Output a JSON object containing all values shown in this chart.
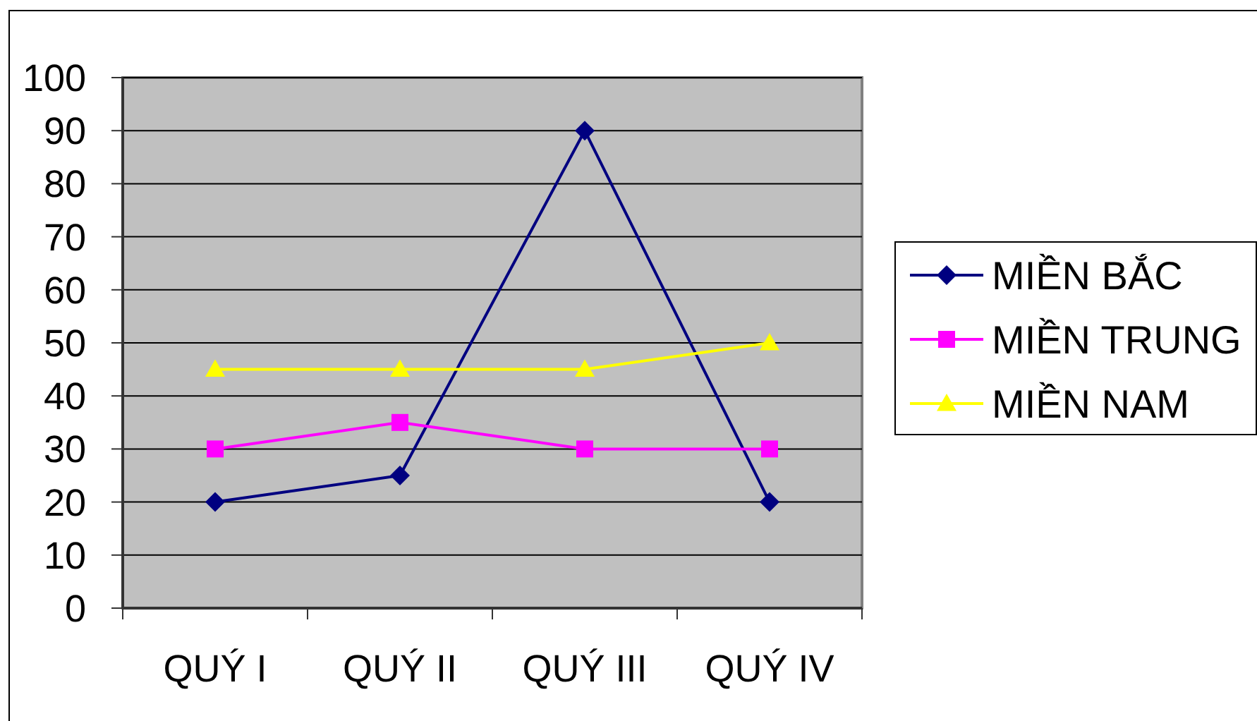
{
  "chart_data": {
    "type": "line",
    "categories": [
      "QUÝ I",
      "QUÝ II",
      "QUÝ III",
      "QUÝ IV"
    ],
    "series": [
      {
        "name": "MIỀN BẮC",
        "color": "#000080",
        "marker": "diamond",
        "values": [
          20,
          25,
          90,
          20
        ]
      },
      {
        "name": "MIỀN TRUNG",
        "color": "#ff00ff",
        "marker": "square",
        "values": [
          30,
          35,
          30,
          30
        ]
      },
      {
        "name": "MIỀN NAM",
        "color": "#ffff00",
        "marker": "triangle",
        "values": [
          45,
          45,
          45,
          50
        ]
      }
    ],
    "ylim": [
      0,
      100
    ],
    "yticks": [
      0,
      10,
      20,
      30,
      40,
      50,
      60,
      70,
      80,
      90,
      100
    ],
    "grid": "y",
    "legend": "right",
    "line_style": "solid"
  }
}
